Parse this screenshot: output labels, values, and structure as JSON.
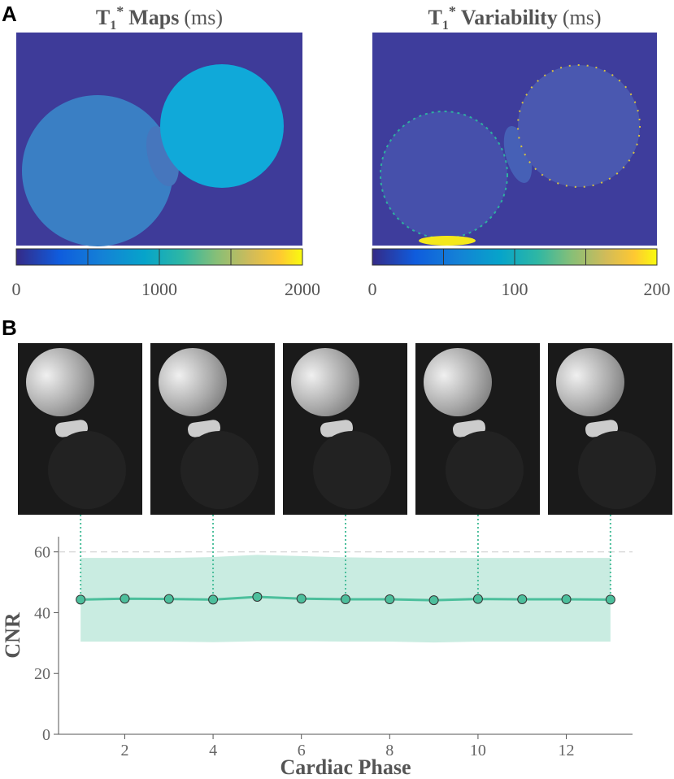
{
  "panel_a": {
    "label": "A",
    "maps": [
      {
        "title": [
          {
            "text": "T",
            "style": "bold"
          },
          {
            "text": "1",
            "style": "sub"
          },
          {
            "text": "*",
            "style": "sup"
          },
          {
            "text": "Maps",
            "style": "bold"
          },
          {
            "text": "(ms)",
            "style": "normal"
          }
        ],
        "colorbar": {
          "clim": [
            0,
            2000
          ],
          "ticks": [
            0,
            1000,
            2000
          ],
          "minor_ticks": [
            500,
            1500
          ]
        }
      },
      {
        "title": [
          {
            "text": "T",
            "style": "bold"
          },
          {
            "text": "1",
            "style": "sub"
          },
          {
            "text": "*",
            "style": "sup"
          },
          {
            "text": "Variability",
            "style": "bold"
          },
          {
            "text": "(ms)",
            "style": "normal"
          }
        ],
        "colorbar": {
          "clim": [
            0,
            200
          ],
          "ticks": [
            0,
            100,
            200
          ],
          "minor_ticks": [
            50,
            150
          ]
        }
      }
    ]
  },
  "panel_b": {
    "label": "B",
    "image_phases": [
      1,
      4,
      7,
      10,
      13
    ]
  },
  "chart_data": {
    "type": "line",
    "x": [
      1,
      2,
      3,
      4,
      5,
      6,
      7,
      8,
      9,
      10,
      11,
      12,
      13
    ],
    "values": [
      44.3,
      44.6,
      44.5,
      44.3,
      45.2,
      44.6,
      44.4,
      44.4,
      44.1,
      44.5,
      44.4,
      44.4,
      44.3
    ],
    "band": {
      "upper": [
        58,
        58,
        58,
        58.3,
        59,
        58.6,
        58.2,
        58,
        58,
        58,
        58,
        58,
        58
      ],
      "lower": [
        30.5,
        30.5,
        30.5,
        30.3,
        30.6,
        30.6,
        30.5,
        30.5,
        30.2,
        30.5,
        30.5,
        30.5,
        30.5
      ]
    },
    "color": "#4cbf9c",
    "xlim": [
      0.5,
      13.5
    ],
    "ylim": [
      0,
      65
    ],
    "xticks": [
      2,
      4,
      6,
      8,
      10,
      12
    ],
    "yticks": [
      0,
      20,
      40,
      60
    ],
    "dashed_line": 60,
    "xlabel": "Cardiac Phase",
    "ylabel": "CNR"
  }
}
